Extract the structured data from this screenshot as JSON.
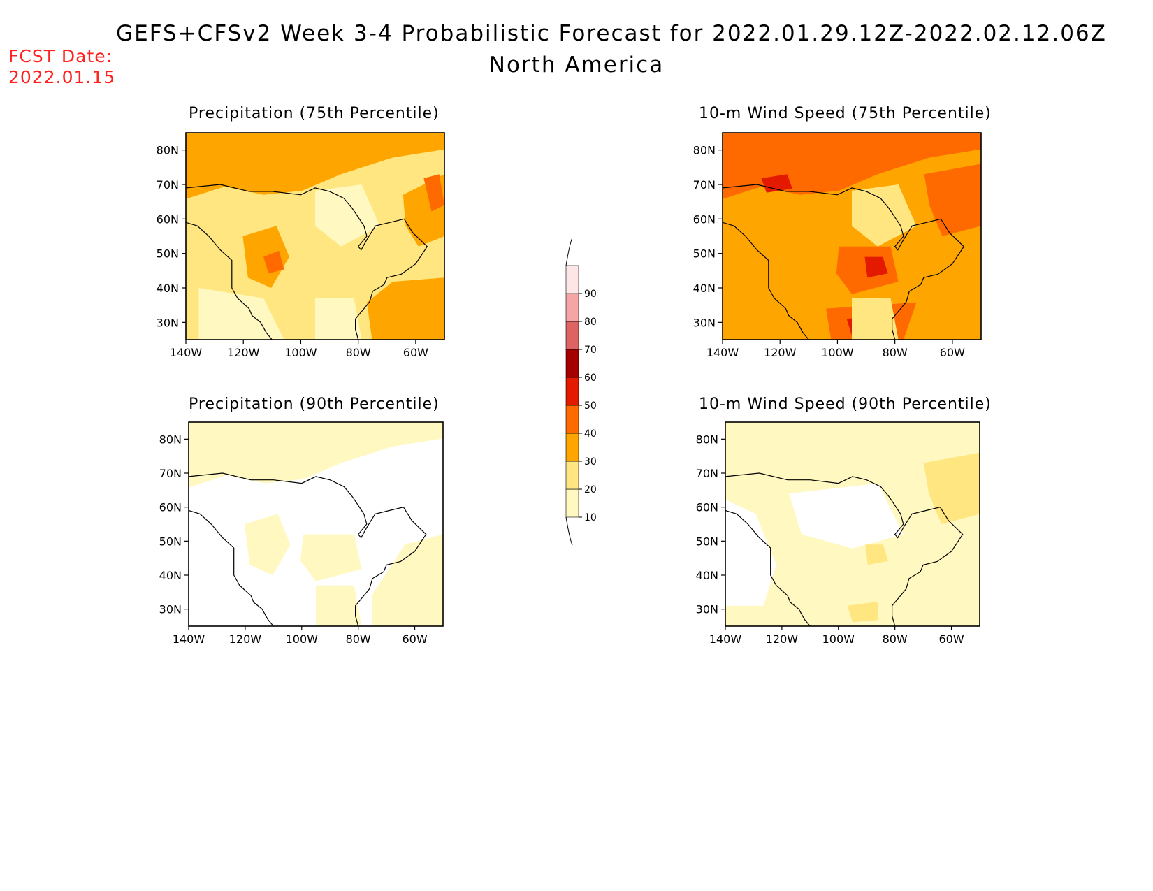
{
  "header": {
    "title": "GEFS+CFSv2 Week 3-4 Probabilistic Forecast for 2022.01.29.12Z-2022.02.12.06Z",
    "subtitle": "North America",
    "fcst_label": "FCST Date:",
    "fcst_date": "2022.01.15"
  },
  "panels": [
    {
      "id": "precip75",
      "title": "Precipitation (75th Percentile)",
      "base_level": 20,
      "blobs": [
        {
          "level": 30,
          "region": "arctic-band"
        },
        {
          "level": 30,
          "region": "greenland-east"
        },
        {
          "level": 30,
          "region": "rockies-south"
        },
        {
          "level": 30,
          "region": "atlantic-gulfstream"
        },
        {
          "level": 40,
          "region": "greenland-coast"
        },
        {
          "level": 40,
          "region": "colorado"
        },
        {
          "level": 10,
          "region": "hudson-bay"
        },
        {
          "level": 10,
          "region": "southwest"
        },
        {
          "level": 10,
          "region": "southeast"
        }
      ]
    },
    {
      "id": "wind75",
      "title": "10-m Wind Speed (75th Percentile)",
      "base_level": 30,
      "blobs": [
        {
          "level": 40,
          "region": "arctic-band"
        },
        {
          "level": 40,
          "region": "great-lakes"
        },
        {
          "level": 40,
          "region": "labrador-sea"
        },
        {
          "level": 40,
          "region": "gulf"
        },
        {
          "level": 50,
          "region": "great-lakes-core"
        },
        {
          "level": 50,
          "region": "beaufort"
        },
        {
          "level": 50,
          "region": "gulf-core"
        },
        {
          "level": 20,
          "region": "hudson-bay"
        },
        {
          "level": 20,
          "region": "southeast"
        }
      ]
    },
    {
      "id": "precip90",
      "title": "Precipitation (90th Percentile)",
      "base_level": 0,
      "blobs": [
        {
          "level": 10,
          "region": "arctic-band"
        },
        {
          "level": 10,
          "region": "atlantic"
        },
        {
          "level": 10,
          "region": "rockies-south"
        },
        {
          "level": 10,
          "region": "southeast"
        },
        {
          "level": 10,
          "region": "great-lakes"
        }
      ]
    },
    {
      "id": "wind90",
      "title": "10-m Wind Speed (90th Percentile)",
      "base_level": 10,
      "blobs": [
        {
          "level": 0,
          "region": "canada-interior"
        },
        {
          "level": 0,
          "region": "west-coast"
        },
        {
          "level": 20,
          "region": "great-lakes-core"
        },
        {
          "level": 20,
          "region": "labrador-sea"
        },
        {
          "level": 20,
          "region": "gulf-core"
        }
      ]
    }
  ],
  "axes": {
    "x_ticks": [
      "140W",
      "120W",
      "100W",
      "80W",
      "60W"
    ],
    "y_ticks": [
      "30N",
      "40N",
      "50N",
      "60N",
      "70N",
      "80N"
    ],
    "lon_range": [
      -140,
      -50
    ],
    "lat_range": [
      25,
      85
    ]
  },
  "colorbar": {
    "levels": [
      10,
      20,
      30,
      40,
      50,
      60,
      70,
      80,
      90
    ],
    "colors": [
      "#fff8c0",
      "#ffe680",
      "#ffa500",
      "#ff6a00",
      "#e41a00",
      "#a50000",
      "#de6464",
      "#f5a5a5",
      "#ffe6e6"
    ]
  }
}
